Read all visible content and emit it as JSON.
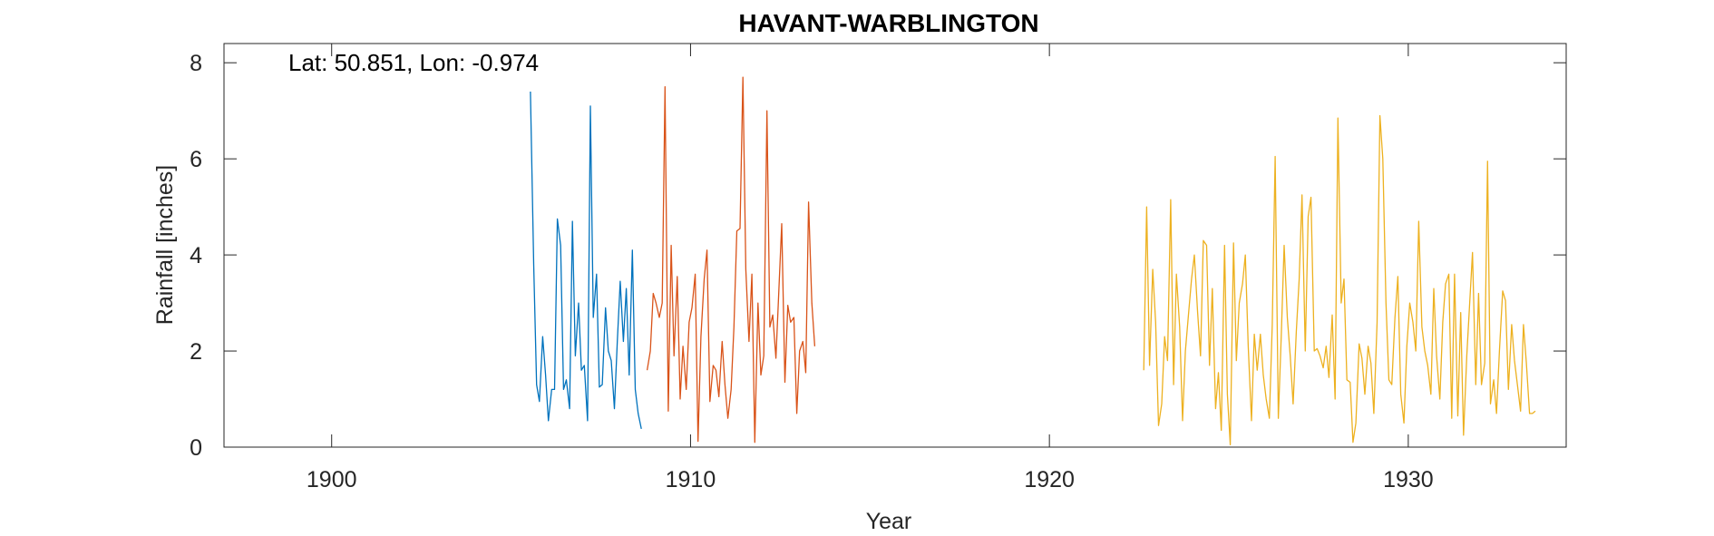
{
  "chart_data": {
    "type": "line",
    "title": "HAVANT-WARBLINGTON",
    "xlabel": "Year",
    "ylabel": "Rainfall [inches]",
    "annotation": "Lat: 50.851, Lon: -0.974",
    "xlim": [
      1897,
      1934.4
    ],
    "ylim": [
      0,
      8.4
    ],
    "xticks": [
      1900,
      1910,
      1920,
      1930
    ],
    "yticks": [
      0,
      2,
      4,
      6,
      8
    ],
    "grid": false,
    "legend": "none",
    "series": [
      {
        "color": "#0072BD",
        "x": [
          1905.54,
          1905.63,
          1905.71,
          1905.79,
          1905.88,
          1905.96,
          1906.04,
          1906.13,
          1906.21,
          1906.29,
          1906.38,
          1906.46,
          1906.54,
          1906.63,
          1906.71,
          1906.79,
          1906.88,
          1906.96,
          1907.04,
          1907.13,
          1907.21,
          1907.29,
          1907.38,
          1907.46,
          1907.54,
          1907.63,
          1907.71,
          1907.79,
          1907.88,
          1907.96,
          1908.04,
          1908.13,
          1908.21,
          1908.29,
          1908.38,
          1908.46,
          1908.54,
          1908.63
        ],
        "values": [
          7.4,
          3.8,
          1.3,
          0.95,
          2.3,
          1.5,
          0.55,
          1.2,
          1.2,
          4.75,
          4.2,
          1.2,
          1.4,
          0.8,
          4.7,
          1.9,
          3.0,
          1.6,
          1.7,
          0.55,
          7.1,
          2.7,
          3.6,
          1.25,
          1.3,
          2.9,
          2.0,
          1.8,
          0.8,
          2.2,
          3.45,
          2.2,
          3.3,
          1.5,
          4.1,
          1.2,
          0.7,
          0.38
        ]
      },
      {
        "color": "#D95319",
        "x": [
          1908.79,
          1908.88,
          1908.96,
          1909.04,
          1909.13,
          1909.21,
          1909.29,
          1909.38,
          1909.46,
          1909.54,
          1909.63,
          1909.71,
          1909.79,
          1909.88,
          1909.96,
          1910.04,
          1910.13,
          1910.21,
          1910.29,
          1910.38,
          1910.46,
          1910.54,
          1910.63,
          1910.71,
          1910.79,
          1910.88,
          1910.96,
          1911.04,
          1911.13,
          1911.21,
          1911.29,
          1911.38,
          1911.46,
          1911.54,
          1911.63,
          1911.71,
          1911.79,
          1911.88,
          1911.96,
          1912.04,
          1912.13,
          1912.21,
          1912.29,
          1912.38,
          1912.46,
          1912.54,
          1912.63,
          1912.71,
          1912.79,
          1912.88,
          1912.96,
          1913.04,
          1913.13,
          1913.21,
          1913.29,
          1913.38,
          1913.46
        ],
        "values": [
          1.6,
          2.0,
          3.2,
          3.0,
          2.7,
          3.0,
          7.5,
          0.75,
          4.2,
          1.9,
          3.55,
          1.0,
          2.1,
          1.2,
          2.6,
          2.9,
          3.6,
          0.12,
          2.3,
          3.5,
          4.1,
          0.95,
          1.7,
          1.6,
          1.05,
          2.2,
          1.3,
          0.6,
          1.2,
          2.5,
          4.5,
          4.55,
          7.7,
          3.7,
          2.2,
          3.6,
          0.1,
          3.0,
          1.5,
          1.9,
          7.0,
          2.5,
          2.75,
          1.85,
          3.25,
          4.65,
          1.35,
          2.95,
          2.6,
          2.7,
          0.7,
          2.0,
          2.2,
          1.55,
          5.1,
          3.0,
          2.1
        ]
      },
      {
        "color": "#EDB120",
        "x": [
          1922.63,
          1922.71,
          1922.79,
          1922.88,
          1922.96,
          1923.04,
          1923.13,
          1923.21,
          1923.29,
          1923.38,
          1923.46,
          1923.54,
          1923.63,
          1923.71,
          1923.79,
          1923.88,
          1923.96,
          1924.04,
          1924.13,
          1924.21,
          1924.29,
          1924.38,
          1924.46,
          1924.54,
          1924.63,
          1924.71,
          1924.79,
          1924.88,
          1924.96,
          1925.04,
          1925.13,
          1925.21,
          1925.29,
          1925.38,
          1925.46,
          1925.54,
          1925.63,
          1925.71,
          1925.79,
          1925.88,
          1925.96,
          1926.04,
          1926.13,
          1926.21,
          1926.29,
          1926.38,
          1926.46,
          1926.54,
          1926.63,
          1926.71,
          1926.79,
          1926.88,
          1926.96,
          1927.04,
          1927.13,
          1927.21,
          1927.29,
          1927.38,
          1927.46,
          1927.54,
          1927.63,
          1927.71,
          1927.79,
          1927.88,
          1927.96,
          1928.04,
          1928.13,
          1928.21,
          1928.29,
          1928.38,
          1928.46,
          1928.54,
          1928.63,
          1928.71,
          1928.79,
          1928.88,
          1928.96,
          1929.04,
          1929.13,
          1929.21,
          1929.29,
          1929.38,
          1929.46,
          1929.54,
          1929.63,
          1929.71,
          1929.79,
          1929.88,
          1929.96,
          1930.04,
          1930.13,
          1930.21,
          1930.29,
          1930.38,
          1930.46,
          1930.54,
          1930.63,
          1930.71,
          1930.79,
          1930.88,
          1930.96,
          1931.04,
          1931.13,
          1931.21,
          1931.29,
          1931.38,
          1931.46,
          1931.54,
          1931.63,
          1931.71,
          1931.79,
          1931.88,
          1931.96,
          1932.04,
          1932.13,
          1932.21,
          1932.29,
          1932.38,
          1932.46,
          1932.54,
          1932.63,
          1932.71,
          1932.79,
          1932.88,
          1932.96,
          1933.04,
          1933.13,
          1933.21,
          1933.29,
          1933.38,
          1933.46,
          1933.54
        ],
        "values": [
          1.6,
          5.0,
          1.7,
          3.7,
          2.6,
          0.45,
          0.9,
          2.3,
          1.8,
          5.15,
          1.3,
          3.6,
          2.5,
          0.55,
          2.0,
          2.8,
          3.5,
          4.0,
          2.8,
          1.9,
          4.3,
          4.2,
          1.7,
          3.3,
          0.8,
          1.55,
          0.35,
          4.2,
          1.1,
          0.05,
          4.25,
          1.8,
          3.0,
          3.4,
          4.0,
          2.1,
          0.55,
          2.35,
          1.6,
          2.35,
          1.5,
          1.0,
          0.6,
          2.55,
          6.05,
          0.6,
          2.3,
          4.2,
          2.7,
          1.9,
          0.9,
          2.4,
          3.5,
          5.25,
          2.0,
          4.8,
          5.2,
          2.0,
          2.05,
          1.9,
          1.65,
          2.1,
          1.45,
          2.75,
          1.0,
          6.85,
          3.0,
          3.5,
          1.4,
          1.35,
          0.1,
          0.5,
          2.15,
          1.85,
          1.1,
          2.1,
          1.75,
          0.7,
          2.6,
          6.9,
          6.0,
          3.0,
          1.4,
          1.3,
          2.7,
          3.55,
          1.1,
          0.5,
          2.1,
          3.0,
          2.6,
          2.0,
          4.7,
          2.5,
          2.0,
          1.7,
          1.1,
          3.3,
          1.9,
          1.0,
          2.6,
          3.4,
          3.6,
          0.6,
          3.6,
          0.65,
          2.8,
          0.25,
          1.9,
          3.0,
          4.05,
          1.3,
          3.2,
          1.3,
          1.75,
          5.95,
          0.9,
          1.4,
          0.7,
          2.0,
          3.25,
          3.05,
          1.2,
          2.55,
          1.8,
          1.3,
          0.75,
          2.55,
          1.75,
          0.7,
          0.7,
          0.75
        ]
      }
    ]
  }
}
